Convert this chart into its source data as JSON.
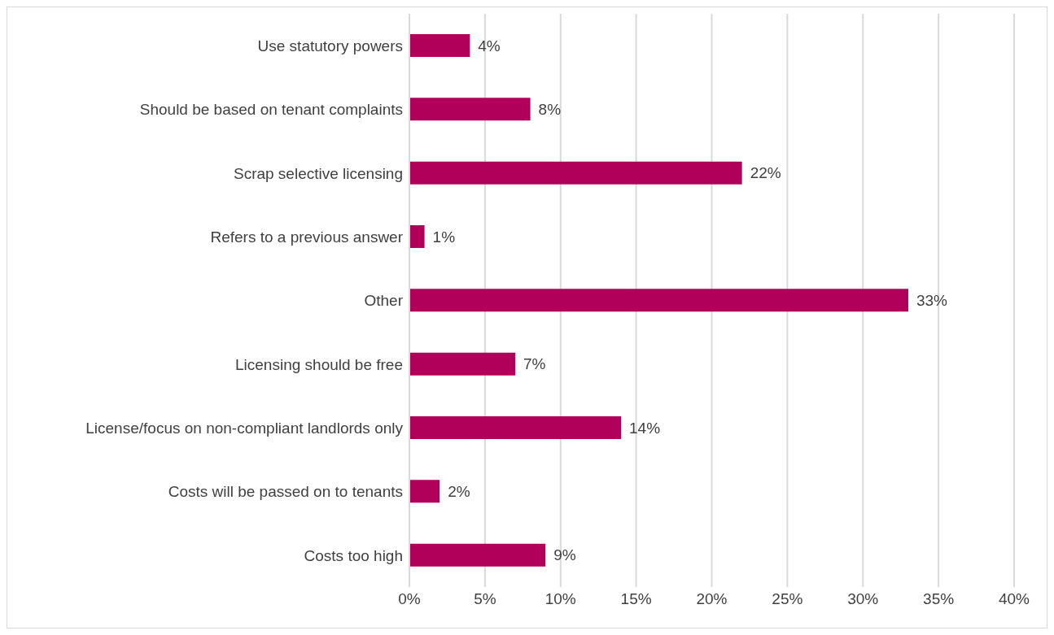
{
  "chart_data": {
    "type": "bar",
    "orientation": "horizontal",
    "categories": [
      "Use statutory powers",
      "Should be based on tenant complaints",
      "Scrap selective licensing",
      "Refers to a previous answer",
      "Other ",
      "Licensing should be free",
      "License/focus on non-compliant landlords only",
      "Costs will be passed on to tenants",
      "Costs too high"
    ],
    "values": [
      4,
      8,
      22,
      1,
      33,
      7,
      14,
      2,
      9
    ],
    "value_labels": [
      "4%",
      "8%",
      "22%",
      "1%",
      "33%",
      "7%",
      "14%",
      "2%",
      "9%"
    ],
    "color": "#b0005a",
    "xlim": [
      0,
      40
    ],
    "xticks": [
      {
        "value": 0,
        "label": "0%"
      },
      {
        "value": 5,
        "label": "5%"
      },
      {
        "value": 10,
        "label": "10%"
      },
      {
        "value": 15,
        "label": "15%"
      },
      {
        "value": 20,
        "label": "20%"
      },
      {
        "value": 25,
        "label": "25%"
      },
      {
        "value": 30,
        "label": "30%"
      },
      {
        "value": 35,
        "label": "35%"
      },
      {
        "value": 40,
        "label": "40%"
      }
    ],
    "grid": "x"
  }
}
